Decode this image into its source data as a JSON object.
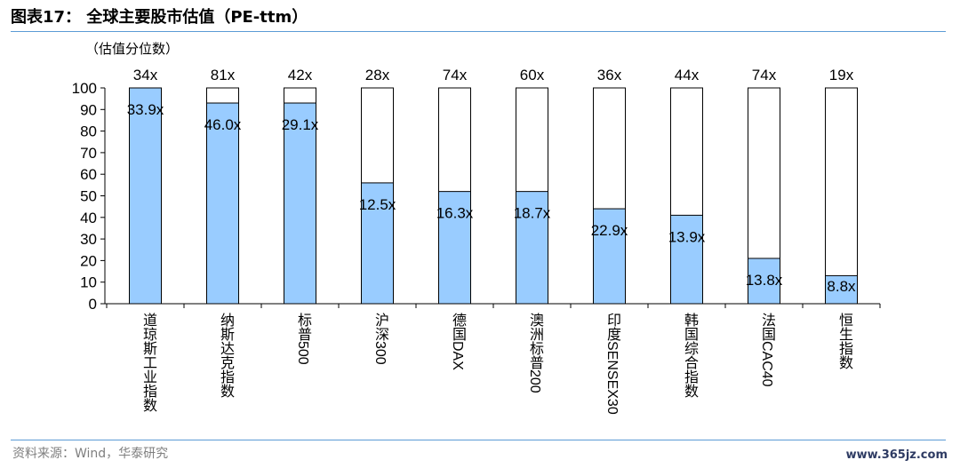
{
  "header": {
    "title": "图表17： 全球主要股市估值（PE-ttm）"
  },
  "footer": {
    "source": "资料来源：Wind，华泰研究",
    "watermark": "www.365jz.com"
  },
  "colors": {
    "bar_fill": "#99ccff",
    "bar_stroke": "#000000",
    "rule": "#5b9bd5"
  },
  "chart_data": {
    "type": "bar",
    "ylabel": "（估值分位数）",
    "ylim": [
      0,
      100
    ],
    "yticks": [
      0,
      10,
      20,
      30,
      40,
      50,
      60,
      70,
      80,
      90,
      100
    ],
    "categories": [
      "道琼斯工业指数",
      "纳斯达克指数",
      "标普500",
      "沪深300",
      "德国DAX",
      "澳洲标普200",
      "印度SENSEX30",
      "韩国综合指数",
      "法国CAC40",
      "恒生指数"
    ],
    "values": [
      100,
      93,
      93,
      56,
      52,
      52,
      44,
      41,
      21,
      13
    ],
    "current_pe_labels": [
      "33.9x",
      "46.0x",
      "29.1x",
      "12.5x",
      "16.3x",
      "18.7x",
      "22.9x",
      "13.9x",
      "13.8x",
      "8.8x"
    ],
    "top_labels": [
      "34x",
      "81x",
      "42x",
      "28x",
      "74x",
      "60x",
      "36x",
      "44x",
      "74x",
      "19x"
    ],
    "grid": false,
    "legend": "none"
  }
}
